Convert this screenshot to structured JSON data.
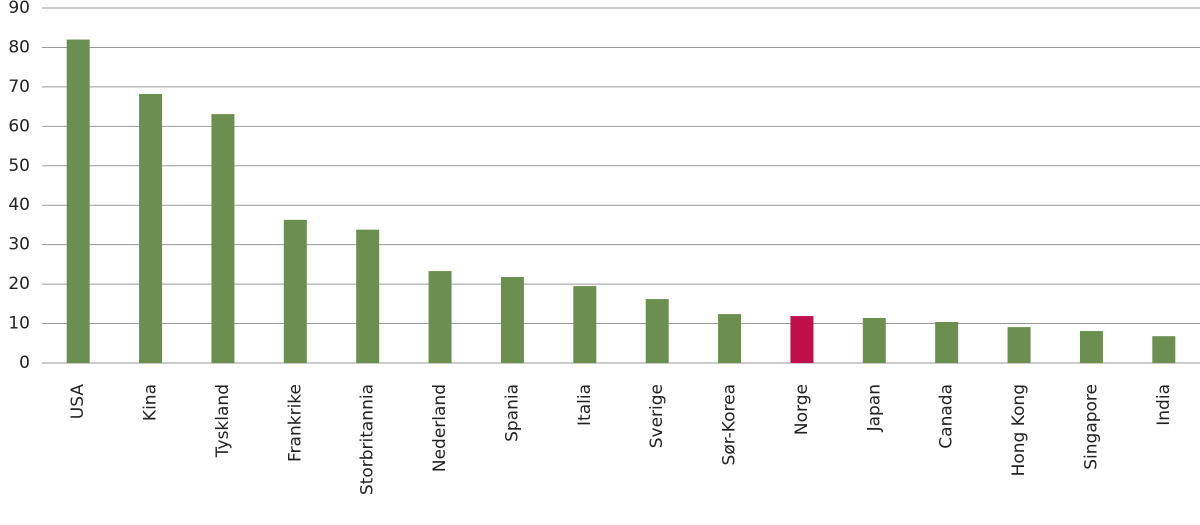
{
  "chart_data": {
    "type": "bar",
    "categories": [
      "USA",
      "Kina",
      "Tyskland",
      "Frankrike",
      "Storbritannia",
      "Nederland",
      "Spania",
      "Italia",
      "Sverige",
      "Sør-Korea",
      "Norge",
      "Japan",
      "Canada",
      "Hong Kong",
      "Singapore",
      "India"
    ],
    "values": [
      82,
      68.2,
      63.1,
      36.3,
      33.8,
      23.3,
      21.8,
      19.5,
      16.2,
      12.4,
      11.9,
      11.4,
      10.4,
      9.1,
      8.1,
      6.8
    ],
    "colors": [
      "#6a8f4e",
      "#6a8f4e",
      "#6a8f4e",
      "#6a8f4e",
      "#6a8f4e",
      "#6a8f4e",
      "#6a8f4e",
      "#6a8f4e",
      "#6a8f4e",
      "#6a8f4e",
      "#c0104a",
      "#6a8f4e",
      "#6a8f4e",
      "#6a8f4e",
      "#6a8f4e",
      "#6a8f4e"
    ],
    "ylim": [
      0,
      90
    ],
    "yticks": [
      0,
      10,
      20,
      30,
      40,
      50,
      60,
      70,
      80,
      90
    ],
    "grid": true
  }
}
